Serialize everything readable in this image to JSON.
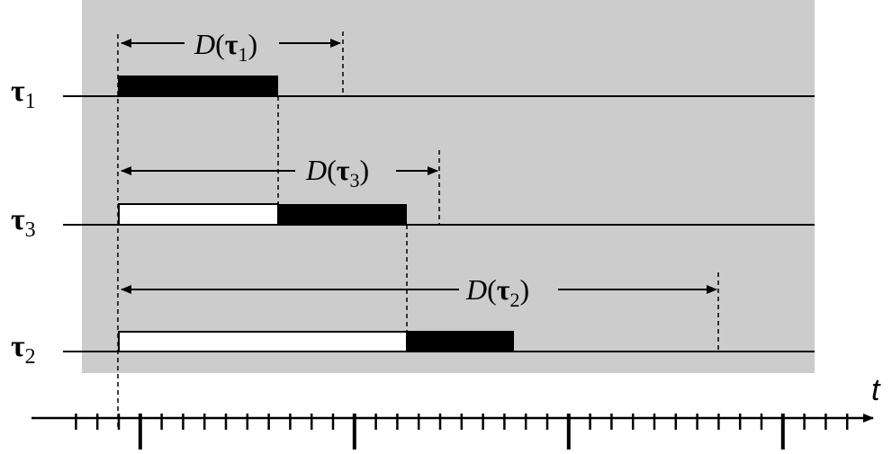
{
  "rows": [
    {
      "symbol": "τ",
      "index": "1",
      "deadline": {
        "fn": "D",
        "open": "(",
        "symbol": "τ",
        "index": "1",
        "close": ")"
      }
    },
    {
      "symbol": "τ",
      "index": "3",
      "deadline": {
        "fn": "D",
        "open": "(",
        "symbol": "τ",
        "index": "3",
        "close": ")"
      }
    },
    {
      "symbol": "τ",
      "index": "2",
      "deadline": {
        "fn": "D",
        "open": "(",
        "symbol": "τ",
        "index": "2",
        "close": ")"
      }
    }
  ],
  "axis": {
    "label": "t"
  }
}
